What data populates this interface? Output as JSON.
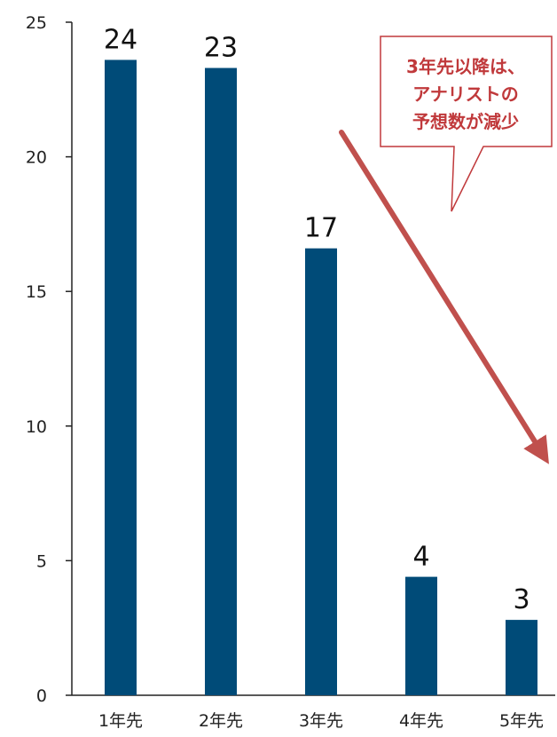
{
  "chart_data": {
    "type": "bar",
    "title": "",
    "xlabel": "",
    "ylabel": "",
    "categories": [
      "1年先",
      "2年先",
      "3年先",
      "4年先",
      "5年先"
    ],
    "values": [
      23.6,
      23.3,
      16.6,
      4.4,
      2.8
    ],
    "data_labels": [
      "24",
      "23",
      "17",
      "4",
      "3"
    ],
    "ylim": [
      0,
      25
    ],
    "yticks": [
      "0",
      "5",
      "10",
      "15",
      "20",
      "25"
    ],
    "grid": false,
    "legend": "none",
    "bar_color": "#004b78",
    "annotation": {
      "lines": [
        "3年先以降は、",
        "アナリストの",
        "予想数が減少"
      ],
      "text_color": "#c0393b",
      "border_color": "#c0393b",
      "arrow_color": "#c0504d"
    }
  }
}
